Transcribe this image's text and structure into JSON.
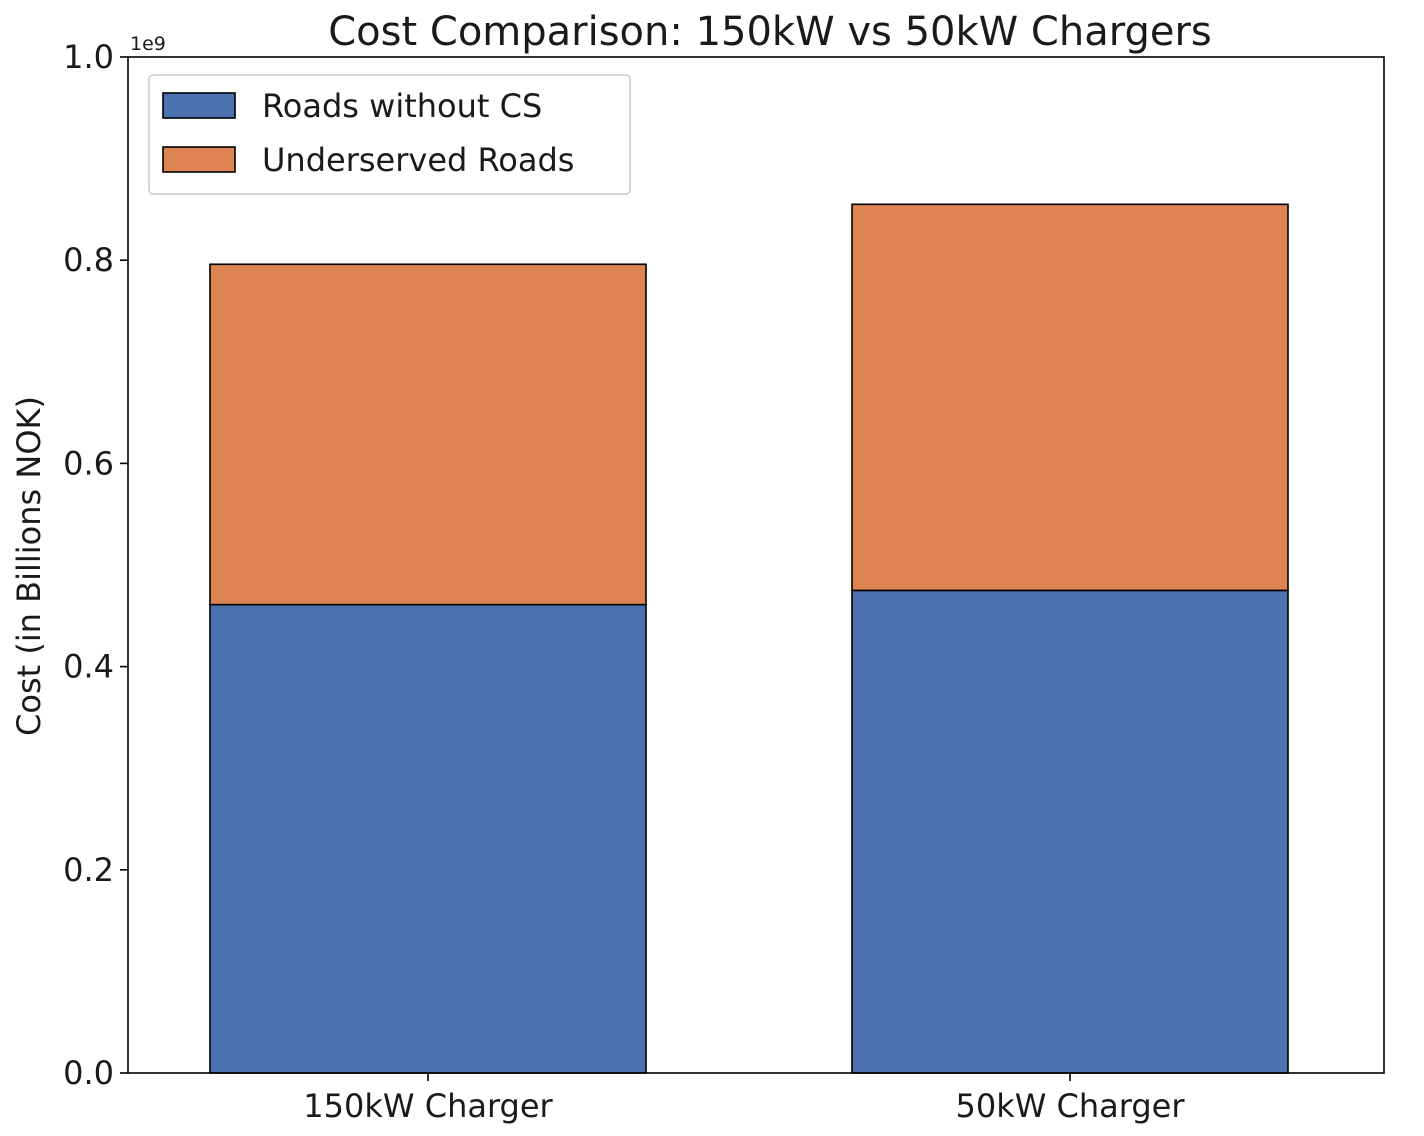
{
  "chart_data": {
    "type": "bar",
    "stacked": true,
    "title": "Cost Comparison: 150kW vs 50kW Chargers",
    "xlabel": "",
    "ylabel": "Cost (in Billions NOK)",
    "y_offset_label": "1e9",
    "ylim": [
      0,
      1000000000
    ],
    "yticks": [
      0,
      200000000,
      400000000,
      600000000,
      800000000,
      1000000000
    ],
    "ytick_labels": [
      "0.0",
      "0.2",
      "0.4",
      "0.6",
      "0.8",
      "1.0"
    ],
    "categories": [
      "150kW Charger",
      "50kW Charger"
    ],
    "series": [
      {
        "name": "Roads without CS",
        "color": "#4c72b0",
        "values": [
          461000000,
          475000000
        ]
      },
      {
        "name": "Underserved Roads",
        "color": "#dd8452",
        "values": [
          335000000,
          380000000
        ]
      }
    ],
    "legend_position": "top-left",
    "grid": false
  }
}
